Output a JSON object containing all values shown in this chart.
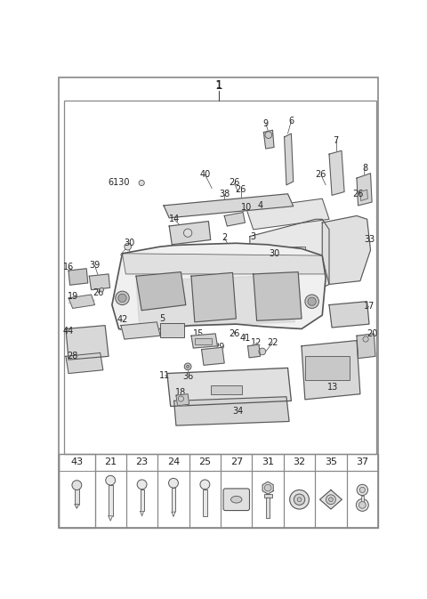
{
  "bg_color": "#ffffff",
  "border_color": "#666666",
  "text_color": "#222222",
  "line_color": "#444444",
  "title": "1",
  "bottom_labels": [
    "21",
    "23",
    "24",
    "25",
    "27",
    "31",
    "32",
    "35",
    "37"
  ],
  "side_label": "43",
  "fig_w": 4.8,
  "fig_h": 6.73,
  "dpi": 100
}
